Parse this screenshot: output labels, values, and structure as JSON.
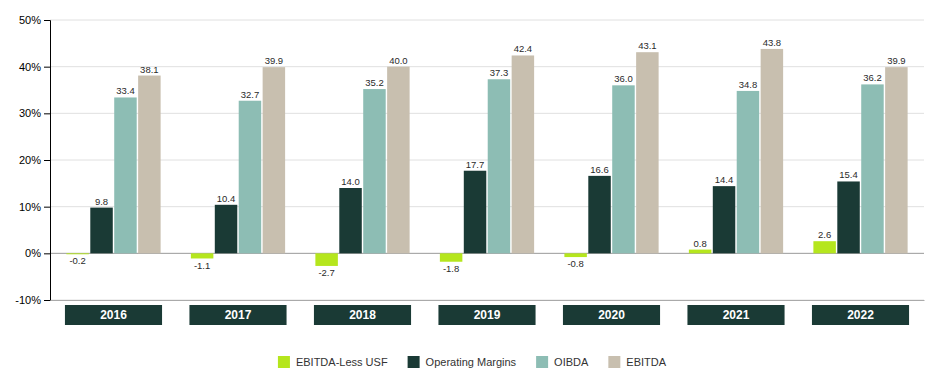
{
  "chart_data": {
    "type": "bar",
    "categories": [
      "2016",
      "2017",
      "2018",
      "2019",
      "2020",
      "2021",
      "2022"
    ],
    "series": [
      {
        "name": "EBITDA-Less USF",
        "color": "#b5e61d",
        "values": [
          -0.2,
          -1.1,
          -2.7,
          -1.8,
          -0.8,
          0.8,
          2.6
        ],
        "value_labels": [
          "-0.2",
          "-1.1",
          "-2.7",
          "-1.8",
          "-0.8",
          "0.8",
          "2.6"
        ]
      },
      {
        "name": "Operating Margins",
        "color": "#1a3a35",
        "values": [
          9.8,
          10.4,
          14.0,
          17.7,
          16.6,
          14.4,
          15.4
        ],
        "value_labels": [
          "9.8",
          "10.4",
          "14.0",
          "17.7",
          "16.6",
          "14.4",
          "15.4"
        ]
      },
      {
        "name": "OIBDA",
        "color": "#8dbdb4",
        "values": [
          33.4,
          32.7,
          35.2,
          37.3,
          36.0,
          34.8,
          36.2
        ],
        "value_labels": [
          "33.4",
          "32.7",
          "35.2",
          "37.3",
          "36.0",
          "34.8",
          "36.2"
        ]
      },
      {
        "name": "EBITDA",
        "color": "#c8bfaf",
        "values": [
          38.1,
          39.9,
          40.0,
          42.4,
          43.1,
          43.8,
          39.9
        ],
        "value_labels": [
          "38.1",
          "39.9",
          "40.0",
          "42.4",
          "43.1",
          "43.8",
          "39.9"
        ]
      }
    ],
    "ylim": [
      -10,
      50
    ],
    "yticks": [
      {
        "value": -10,
        "label": "-10%"
      },
      {
        "value": 0,
        "label": "0%"
      },
      {
        "value": 10,
        "label": "10%"
      },
      {
        "value": 20,
        "label": "20%"
      },
      {
        "value": 30,
        "label": "30%"
      },
      {
        "value": 40,
        "label": "40%"
      },
      {
        "value": 50,
        "label": "50%"
      }
    ],
    "grid": true,
    "data_labels": true,
    "legend": "bottom"
  }
}
